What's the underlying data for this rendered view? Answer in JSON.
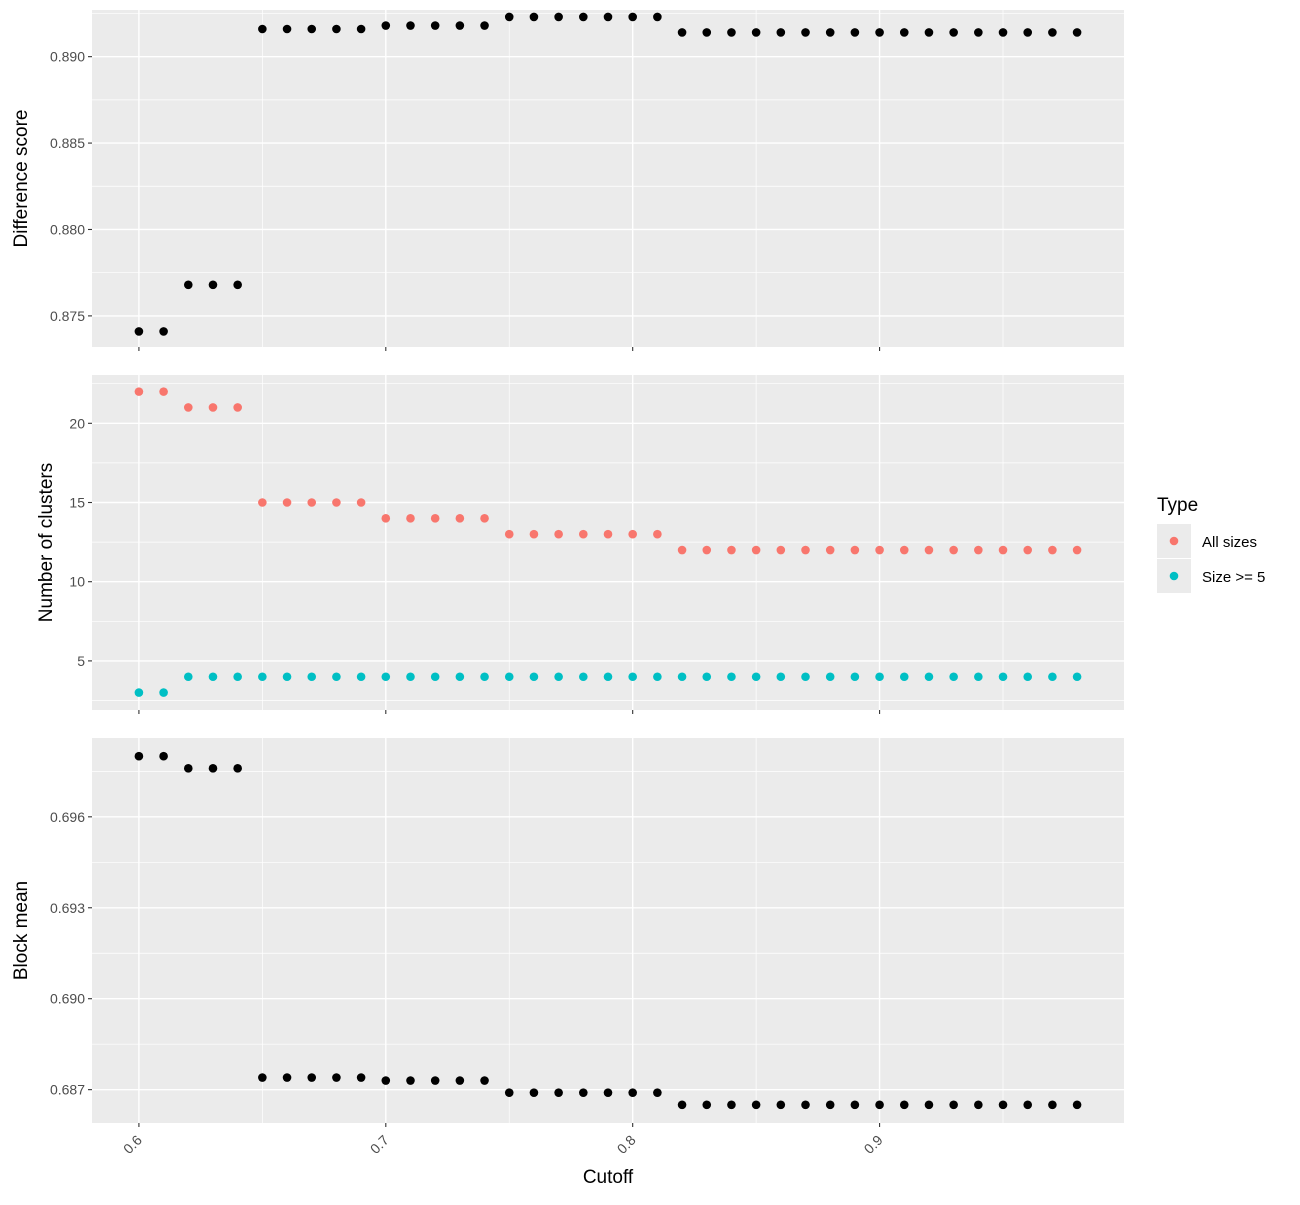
{
  "chart_data": [
    {
      "type": "scatter",
      "ylabel": "Difference score",
      "ylim": [
        0.8732,
        0.8927
      ],
      "yticks": [
        0.875,
        0.88,
        0.885,
        0.89
      ],
      "ytick_labels": [
        "0.875",
        "0.880",
        "0.885",
        "0.890"
      ],
      "grid": true,
      "series": [
        {
          "color": "#000000",
          "x": [
            0.6,
            0.61,
            0.62,
            0.63,
            0.64,
            0.65,
            0.66,
            0.67,
            0.68,
            0.69,
            0.7,
            0.71,
            0.72,
            0.73,
            0.74,
            0.75,
            0.76,
            0.77,
            0.78,
            0.79,
            0.8,
            0.81,
            0.82,
            0.83,
            0.84,
            0.85,
            0.86,
            0.87,
            0.88,
            0.89,
            0.9,
            0.91,
            0.92,
            0.93,
            0.94,
            0.95,
            0.96,
            0.97,
            0.98
          ],
          "y": [
            0.8741,
            0.8741,
            0.8768,
            0.8768,
            0.8768,
            0.8916,
            0.8916,
            0.8916,
            0.8916,
            0.8916,
            0.8918,
            0.8918,
            0.8918,
            0.8918,
            0.8918,
            0.8923,
            0.8923,
            0.8923,
            0.8923,
            0.8923,
            0.8923,
            0.8923,
            0.8914,
            0.8914,
            0.8914,
            0.8914,
            0.8914,
            0.8914,
            0.8914,
            0.8914,
            0.8914,
            0.8914,
            0.8914,
            0.8914,
            0.8914,
            0.8914,
            0.8914,
            0.8914,
            0.8914
          ]
        }
      ]
    },
    {
      "type": "scatter",
      "ylabel": "Number of clusters",
      "ylim": [
        1.9,
        23.05
      ],
      "yticks": [
        5,
        10,
        15,
        20
      ],
      "ytick_labels": [
        "5",
        "10",
        "15",
        "20"
      ],
      "grid": true,
      "series": [
        {
          "name": "All sizes",
          "color": "#f8766d",
          "x": [
            0.6,
            0.61,
            0.62,
            0.63,
            0.64,
            0.65,
            0.66,
            0.67,
            0.68,
            0.69,
            0.7,
            0.71,
            0.72,
            0.73,
            0.74,
            0.75,
            0.76,
            0.77,
            0.78,
            0.79,
            0.8,
            0.81,
            0.82,
            0.83,
            0.84,
            0.85,
            0.86,
            0.87,
            0.88,
            0.89,
            0.9,
            0.91,
            0.92,
            0.93,
            0.94,
            0.95,
            0.96,
            0.97,
            0.98
          ],
          "y": [
            22,
            22,
            21,
            21,
            21,
            15,
            15,
            15,
            15,
            15,
            14,
            14,
            14,
            14,
            14,
            13,
            13,
            13,
            13,
            13,
            13,
            13,
            12,
            12,
            12,
            12,
            12,
            12,
            12,
            12,
            12,
            12,
            12,
            12,
            12,
            12,
            12,
            12,
            12
          ]
        },
        {
          "name": "Size >= 5",
          "color": "#00bfc4",
          "x": [
            0.6,
            0.61,
            0.62,
            0.63,
            0.64,
            0.65,
            0.66,
            0.67,
            0.68,
            0.69,
            0.7,
            0.71,
            0.72,
            0.73,
            0.74,
            0.75,
            0.76,
            0.77,
            0.78,
            0.79,
            0.8,
            0.81,
            0.82,
            0.83,
            0.84,
            0.85,
            0.86,
            0.87,
            0.88,
            0.89,
            0.9,
            0.91,
            0.92,
            0.93,
            0.94,
            0.95,
            0.96,
            0.97,
            0.98
          ],
          "y": [
            3,
            3,
            4,
            4,
            4,
            4,
            4,
            4,
            4,
            4,
            4,
            4,
            4,
            4,
            4,
            4,
            4,
            4,
            4,
            4,
            4,
            4,
            4,
            4,
            4,
            4,
            4,
            4,
            4,
            4,
            4,
            4,
            4,
            4,
            4,
            4,
            4,
            4,
            4
          ]
        }
      ]
    },
    {
      "type": "scatter",
      "ylabel": "Block mean",
      "ylim": [
        0.6859,
        0.6986
      ],
      "yticks": [
        0.687,
        0.69,
        0.693,
        0.696
      ],
      "ytick_labels": [
        "0.687",
        "0.690",
        "0.693",
        "0.696"
      ],
      "grid": true,
      "series": [
        {
          "color": "#000000",
          "x": [
            0.6,
            0.61,
            0.62,
            0.63,
            0.64,
            0.65,
            0.66,
            0.67,
            0.68,
            0.69,
            0.7,
            0.71,
            0.72,
            0.73,
            0.74,
            0.75,
            0.76,
            0.77,
            0.78,
            0.79,
            0.8,
            0.81,
            0.82,
            0.83,
            0.84,
            0.85,
            0.86,
            0.87,
            0.88,
            0.89,
            0.9,
            0.91,
            0.92,
            0.93,
            0.94,
            0.95,
            0.96,
            0.97,
            0.98
          ],
          "y": [
            0.698,
            0.698,
            0.6976,
            0.6976,
            0.6976,
            0.6874,
            0.6874,
            0.6874,
            0.6874,
            0.6874,
            0.6873,
            0.6873,
            0.6873,
            0.6873,
            0.6873,
            0.6869,
            0.6869,
            0.6869,
            0.6869,
            0.6869,
            0.6869,
            0.6869,
            0.6865,
            0.6865,
            0.6865,
            0.6865,
            0.6865,
            0.6865,
            0.6865,
            0.6865,
            0.6865,
            0.6865,
            0.6865,
            0.6865,
            0.6865,
            0.6865,
            0.6865,
            0.6865,
            0.6865
          ]
        }
      ]
    }
  ],
  "shared_x": {
    "label": "Cutoff",
    "xlim": [
      0.581,
      0.999
    ],
    "ticks": [
      0.6,
      0.7,
      0.8,
      0.9
    ],
    "tick_labels": [
      "0.6",
      "0.7",
      "0.8",
      "0.9"
    ]
  },
  "legend": {
    "title": "Type",
    "placement": "right",
    "items": [
      {
        "label": "All sizes",
        "color": "#f8766d"
      },
      {
        "label": "Size >= 5",
        "color": "#00bfc4"
      }
    ]
  }
}
